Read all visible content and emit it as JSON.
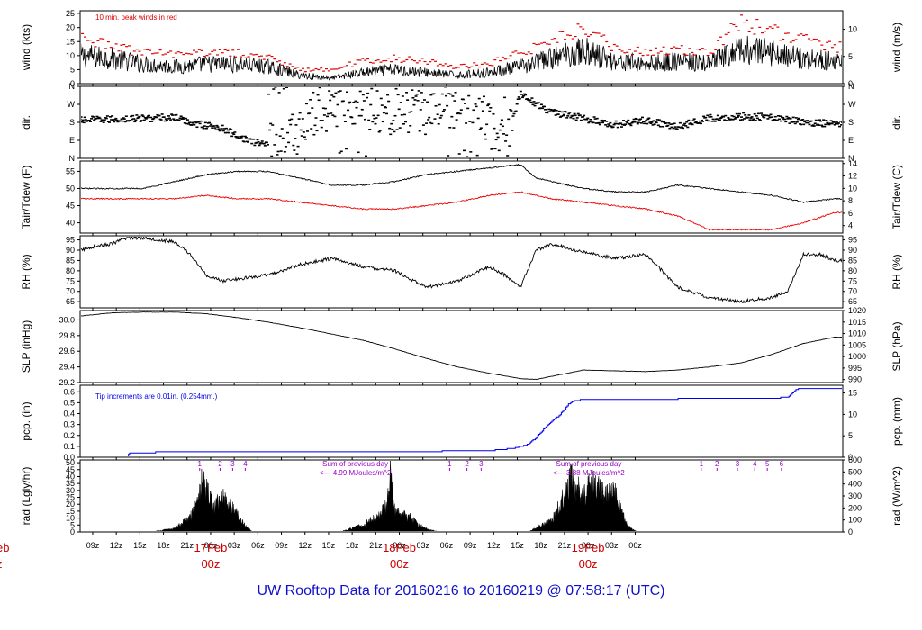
{
  "title": "UW Rooftop Data for 20160216  to  20160219 @ 07:58:17  (UTC)",
  "colors": {
    "main": "#000000",
    "peak": "#dd0000",
    "dew": "#ee0000",
    "pcp": "#0000ee",
    "annot": "#9900cc",
    "date": "#cc0000",
    "title": "#1010cc"
  },
  "x_axis": {
    "time_ticks": [
      "09z",
      "12z",
      "15z",
      "18z",
      "21z",
      "00z",
      "03z",
      "06z",
      "09z",
      "12z",
      "15z",
      "18z",
      "21z",
      "00z",
      "03z",
      "06z",
      "09z",
      "12z",
      "15z",
      "18z",
      "21z",
      "00z",
      "03z",
      "06z"
    ],
    "date_labels": [
      {
        "date": "17Feb",
        "time": "00z",
        "index": 5
      },
      {
        "date": "18Feb",
        "time": "00z",
        "index": 13
      },
      {
        "date": "19Feb",
        "time": "00z",
        "index": 21
      }
    ],
    "left_cut_date": "eb",
    "left_cut_time": "z"
  },
  "chart_data": [
    {
      "type": "line",
      "id": "wind",
      "ylabel_left": "wind (kts)",
      "ylabel_right": "wind (m/s)",
      "ylim": [
        0,
        26
      ],
      "yticks_left": [
        0,
        5,
        10,
        15,
        20,
        25
      ],
      "ylim_right": [
        0,
        13.4
      ],
      "yticks_right": [
        0,
        5,
        10
      ],
      "annotation": "10 min. peak winds in red",
      "series": [
        {
          "name": "wind speed",
          "color": "#000000",
          "x": [
            0,
            4,
            8,
            12,
            16,
            20,
            24,
            28,
            32,
            36,
            40,
            44,
            48,
            52,
            56,
            60,
            64,
            68,
            72,
            76,
            80,
            84,
            88,
            92,
            96
          ],
          "values": [
            10,
            9,
            7,
            6,
            7,
            7,
            6,
            3,
            2,
            4,
            5,
            4,
            3,
            4,
            6,
            9,
            12,
            8,
            7,
            8,
            7,
            12,
            11,
            9,
            8
          ]
        },
        {
          "name": "peak winds",
          "color": "#dd0000",
          "x": [
            0,
            4,
            8,
            12,
            16,
            20,
            24,
            28,
            32,
            36,
            40,
            44,
            48,
            52,
            56,
            60,
            64,
            68,
            72,
            76,
            80,
            84,
            88,
            92,
            96
          ],
          "values": [
            17,
            13,
            11,
            10,
            11,
            11,
            9,
            5,
            5,
            8,
            9,
            8,
            6,
            7,
            11,
            15,
            20,
            13,
            11,
            12,
            11,
            22,
            19,
            16,
            13
          ]
        }
      ]
    },
    {
      "type": "scatter",
      "id": "dir",
      "ylabel_left": "dir.",
      "ylabel_right": "dir.",
      "ylim": [
        0,
        360
      ],
      "yticks_left": [
        "N",
        "E",
        "S",
        "W",
        "N"
      ],
      "ytick_values": [
        0,
        90,
        180,
        270,
        360
      ],
      "series": [
        {
          "name": "wind direction (deg)",
          "color": "#000000",
          "x": [
            0,
            4,
            8,
            12,
            14,
            18,
            22,
            26,
            30,
            34,
            38,
            42,
            46,
            50,
            54,
            56,
            60,
            64,
            68,
            72,
            76,
            80,
            84,
            88,
            92,
            96
          ],
          "values": [
            190,
            195,
            200,
            205,
            180,
            150,
            80,
            70,
            230,
            300,
            250,
            220,
            260,
            290,
            60,
            320,
            230,
            200,
            170,
            190,
            160,
            200,
            210,
            205,
            180,
            175
          ]
        }
      ]
    },
    {
      "type": "line",
      "id": "temp",
      "ylabel_left": "Tair/Tdew (F)",
      "ylabel_right": "Tair/Tdew (C)",
      "ylim": [
        37,
        58
      ],
      "yticks_left": [
        40,
        45,
        50,
        55
      ],
      "ylim_right": [
        2.8,
        14.4
      ],
      "yticks_right": [
        4,
        6,
        8,
        10,
        12,
        14
      ],
      "series": [
        {
          "name": "Tair",
          "color": "#000000",
          "x": [
            0,
            4,
            8,
            12,
            16,
            20,
            24,
            28,
            32,
            36,
            40,
            44,
            48,
            52,
            56,
            58,
            60,
            64,
            68,
            72,
            76,
            80,
            84,
            88,
            92,
            96
          ],
          "values": [
            50,
            50,
            50,
            52,
            54,
            55,
            55,
            53,
            51,
            51,
            52,
            54,
            55,
            56,
            57,
            53,
            52,
            50,
            49,
            49,
            51,
            50,
            49,
            48,
            46,
            47
          ]
        },
        {
          "name": "Tdew",
          "color": "#ee0000",
          "x": [
            0,
            4,
            8,
            12,
            16,
            20,
            24,
            28,
            32,
            36,
            40,
            44,
            48,
            52,
            56,
            58,
            60,
            64,
            68,
            72,
            76,
            80,
            84,
            88,
            92,
            96
          ],
          "values": [
            47,
            47,
            47,
            47,
            48,
            47,
            47,
            46,
            45,
            44,
            44,
            45,
            46,
            48,
            49,
            48,
            47,
            46,
            45,
            44,
            42,
            38,
            38,
            38,
            40,
            43
          ]
        }
      ]
    },
    {
      "type": "line",
      "id": "rh",
      "ylabel_left": "RH (%)",
      "ylabel_right": "RH (%)",
      "ylim": [
        62,
        97
      ],
      "yticks_left": [
        65,
        70,
        75,
        80,
        85,
        90,
        95
      ],
      "yticks_right": [
        65,
        70,
        75,
        80,
        85,
        90,
        95
      ],
      "series": [
        {
          "name": "RH",
          "color": "#000000",
          "x": [
            0,
            2,
            4,
            6,
            8,
            12,
            14,
            16,
            18,
            20,
            24,
            28,
            32,
            36,
            40,
            44,
            48,
            52,
            54,
            56,
            58,
            60,
            64,
            68,
            72,
            76,
            80,
            84,
            88,
            90,
            92,
            94,
            96
          ],
          "values": [
            90,
            92,
            93,
            96,
            96,
            94,
            88,
            78,
            75,
            76,
            78,
            83,
            86,
            82,
            80,
            72,
            75,
            82,
            78,
            72,
            90,
            93,
            89,
            86,
            88,
            72,
            67,
            65,
            67,
            70,
            88,
            88,
            85
          ]
        }
      ]
    },
    {
      "type": "line",
      "id": "slp",
      "ylabel_left": "SLP (inHg)",
      "ylabel_right": "SLP (hPa)",
      "ylim": [
        29.2,
        30.12
      ],
      "yticks_left": [
        29.2,
        29.4,
        29.6,
        29.8,
        30.0
      ],
      "ylim_right": [
        988.7,
        1020
      ],
      "yticks_right": [
        990,
        995,
        1000,
        1005,
        1010,
        1015,
        1020
      ],
      "series": [
        {
          "name": "SLP",
          "color": "#000000",
          "x": [
            0,
            4,
            8,
            12,
            16,
            20,
            24,
            28,
            32,
            36,
            40,
            44,
            48,
            52,
            56,
            58,
            60,
            64,
            68,
            72,
            76,
            80,
            84,
            88,
            92,
            96
          ],
          "values": [
            30.05,
            30.09,
            30.1,
            30.1,
            30.08,
            30.03,
            29.97,
            29.9,
            29.82,
            29.74,
            29.63,
            29.51,
            29.4,
            29.32,
            29.25,
            29.24,
            29.28,
            29.36,
            29.35,
            29.34,
            29.36,
            29.4,
            29.45,
            29.56,
            29.7,
            29.78
          ]
        }
      ]
    },
    {
      "type": "line",
      "id": "pcp",
      "ylabel_left": "pcp. (in)",
      "ylabel_right": "pcp. (mm)",
      "ylim": [
        0,
        0.66
      ],
      "yticks_left": [
        0.0,
        0.1,
        0.2,
        0.3,
        0.4,
        0.5,
        0.6
      ],
      "ylim_right": [
        0,
        16.8
      ],
      "yticks_right": [
        0,
        5,
        10,
        15
      ],
      "annotation": "Tip increments are 0.01in. (0.254mm.)",
      "series": [
        {
          "name": "precipitation",
          "color": "#0000ee",
          "x": [
            0,
            6,
            6.2,
            13,
            40,
            52,
            55,
            57,
            58,
            59,
            60,
            61,
            61.5,
            62,
            62.5,
            63,
            64,
            72,
            80,
            88,
            90,
            91,
            91.5,
            96
          ],
          "values": [
            0.0,
            0.0,
            0.04,
            0.05,
            0.05,
            0.06,
            0.08,
            0.12,
            0.18,
            0.26,
            0.33,
            0.39,
            0.43,
            0.48,
            0.51,
            0.52,
            0.53,
            0.53,
            0.54,
            0.54,
            0.55,
            0.62,
            0.63,
            0.63
          ]
        }
      ]
    },
    {
      "type": "area",
      "id": "rad",
      "ylabel_left": "rad (Lgly/hr)",
      "ylabel_right": "rad (W/m^2)",
      "ylim": [
        0,
        52
      ],
      "yticks_left": [
        0,
        5,
        10,
        15,
        20,
        25,
        30,
        35,
        40,
        45,
        50
      ],
      "ylim_right": [
        0,
        600
      ],
      "yticks_right": [
        0,
        100,
        200,
        300,
        400,
        500,
        600
      ],
      "annotations": [
        "Sum of previous day",
        "<--- 4.99 MJoules/m^2",
        "Sum of previous day",
        "<--- 3.88 MJoules/m^2"
      ],
      "marker_labels": [
        [
          "1",
          "2",
          "3",
          "4"
        ],
        [
          "1",
          "2",
          "3"
        ],
        [
          "1",
          "2",
          "3",
          "4",
          "5",
          "6"
        ]
      ],
      "series": [
        {
          "name": "solar radiation",
          "color": "#000000",
          "x": [
            9,
            12,
            14,
            15,
            15.5,
            16,
            17,
            18,
            19,
            20,
            21,
            22,
            33,
            36,
            38,
            39,
            39.5,
            40,
            41,
            42,
            43,
            44,
            45,
            46,
            57,
            60,
            62,
            62.5,
            63,
            64,
            65,
            66,
            67,
            68,
            69,
            70,
            71
          ],
          "values": [
            0,
            3,
            12,
            25,
            42,
            35,
            20,
            28,
            24,
            14,
            5,
            0,
            0,
            6,
            14,
            22,
            48,
            18,
            14,
            12,
            6,
            3,
            1,
            0,
            0,
            10,
            35,
            50,
            38,
            30,
            40,
            36,
            30,
            34,
            14,
            3,
            0
          ]
        }
      ]
    }
  ]
}
